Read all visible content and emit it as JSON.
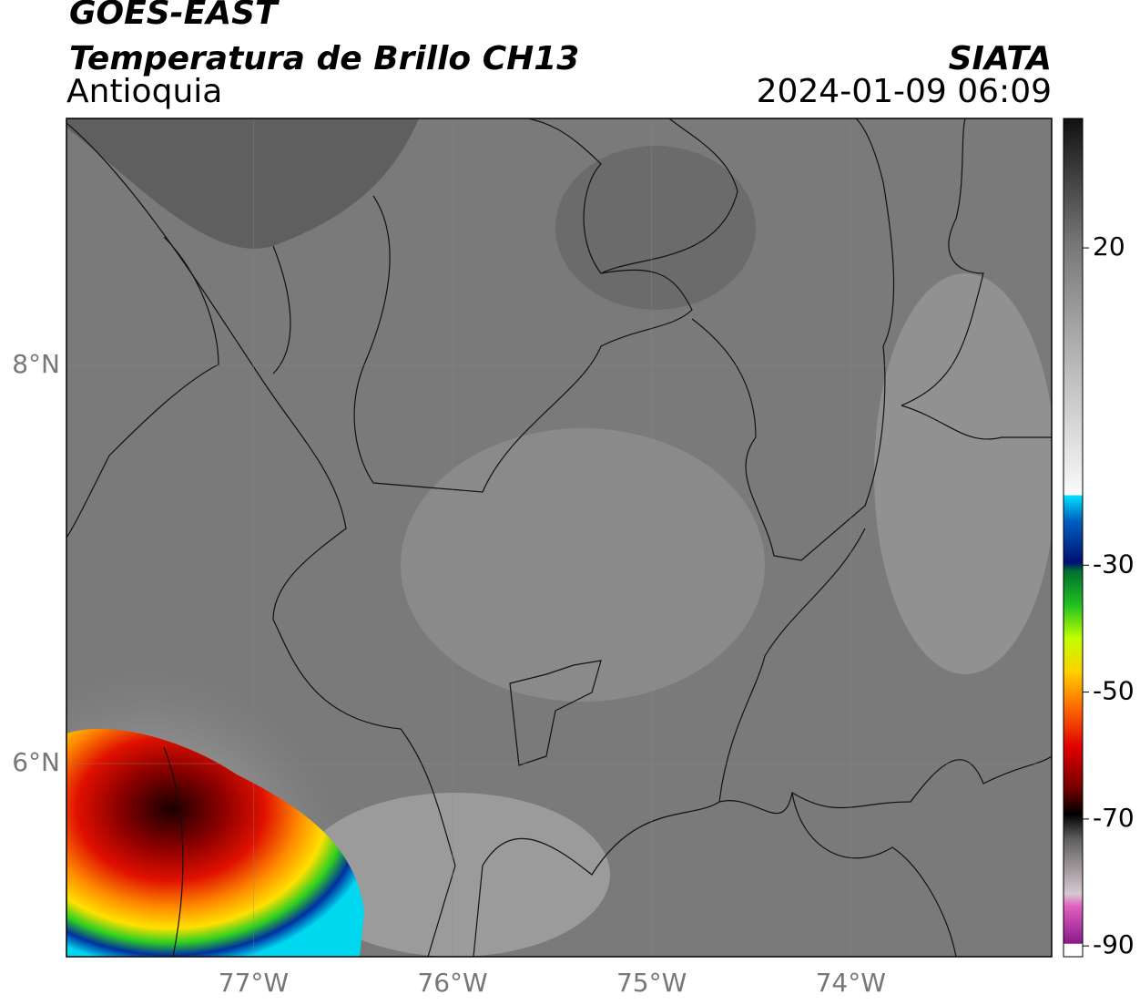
{
  "header": {
    "title": "GOES-EAST",
    "subtitle": "Temperatura de Brillo CH13",
    "region": "Antioquia",
    "source": "SIATA",
    "datetime": "2024-01-09 06:09"
  },
  "map": {
    "lon_range": [
      -77.94,
      -72.99
    ],
    "lat_range": [
      5.03,
      9.24
    ],
    "lon_ticks": [
      {
        "value": -77,
        "label": "77°W"
      },
      {
        "value": -76,
        "label": "76°W"
      },
      {
        "value": -75,
        "label": "75°W"
      },
      {
        "value": -74,
        "label": "74°W"
      }
    ],
    "lat_ticks": [
      {
        "value": 8,
        "label": "8°N"
      },
      {
        "value": 6,
        "label": "6°N"
      }
    ]
  },
  "colorbar": {
    "range": [
      -91.7,
      40.4
    ],
    "ticks": [
      20,
      -30,
      -50,
      -70,
      -90
    ]
  }
}
